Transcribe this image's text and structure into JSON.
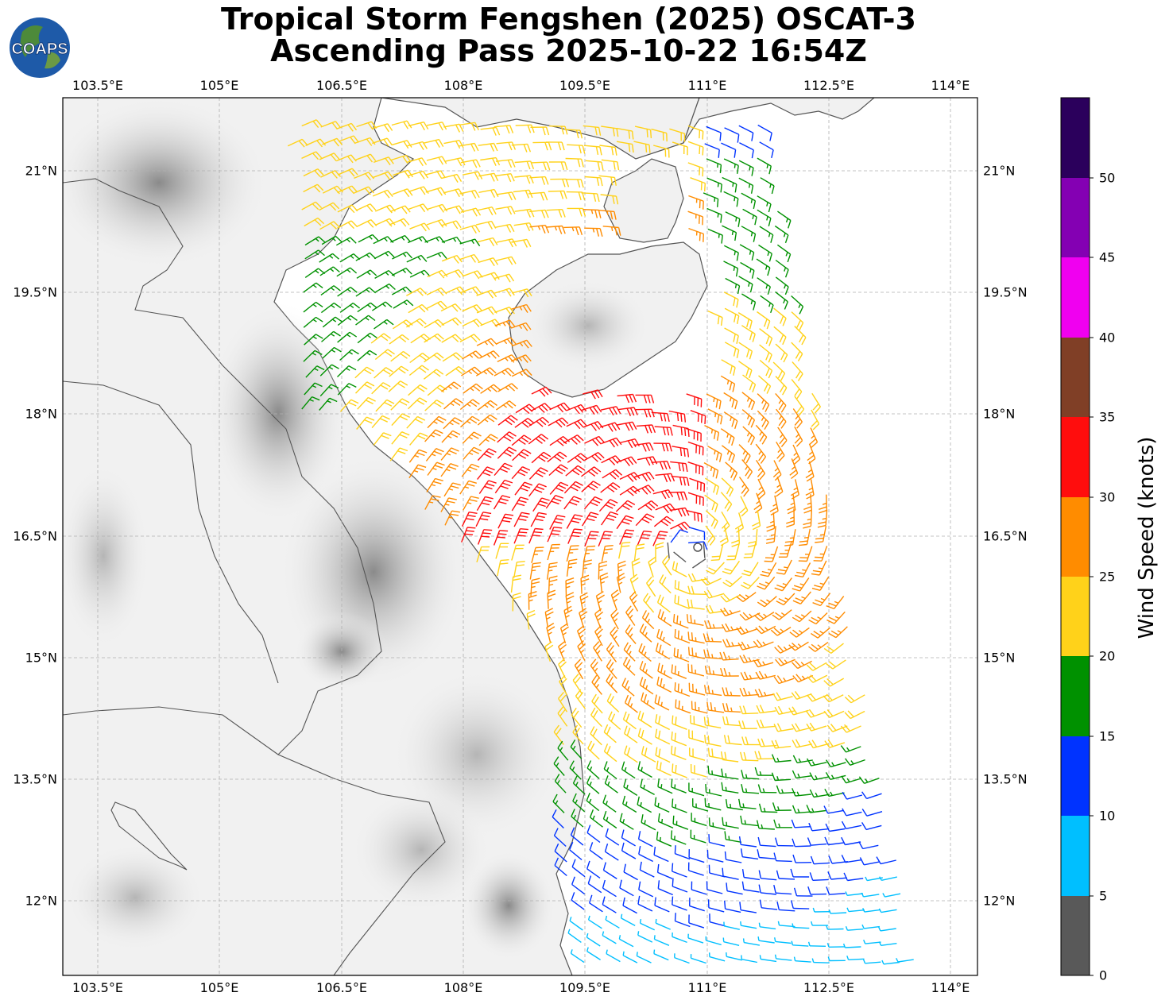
{
  "title": {
    "line1": "Tropical Storm Fengshen (2025) OSCAT-3",
    "line2": "Ascending Pass 2025-10-22 16:54Z"
  },
  "logo": {
    "text": "COAPS"
  },
  "map": {
    "lon_ticks": [
      "103.5°E",
      "105°E",
      "106.5°E",
      "108°E",
      "109.5°E",
      "111°E",
      "112.5°E",
      "114°E"
    ],
    "lat_ticks": [
      "21°N",
      "19.5°N",
      "18°N",
      "16.5°N",
      "15°N",
      "13.5°N",
      "12°N"
    ],
    "lon_values": [
      103.5,
      105,
      106.5,
      108,
      109.5,
      111,
      112.5,
      114
    ],
    "lat_values": [
      21,
      19.5,
      18,
      16.5,
      15,
      13.5,
      12
    ],
    "storm_center": {
      "lon": 110.8,
      "lat": 16.35
    }
  },
  "colorbar": {
    "label": "Wind Speed (knots)",
    "ticks": [
      "0",
      "5",
      "10",
      "15",
      "20",
      "25",
      "30",
      "35",
      "40",
      "45",
      "50"
    ],
    "colors": [
      "#595959",
      "#00bfff",
      "#0033ff",
      "#009100",
      "#ffd21a",
      "#ff8c00",
      "#ff0d0d",
      "#803f26",
      "#f000f0",
      "#8400b3",
      "#2b005c"
    ]
  },
  "colors": {
    "land_light": "#f4f4f4",
    "coastline": "#555555"
  }
}
